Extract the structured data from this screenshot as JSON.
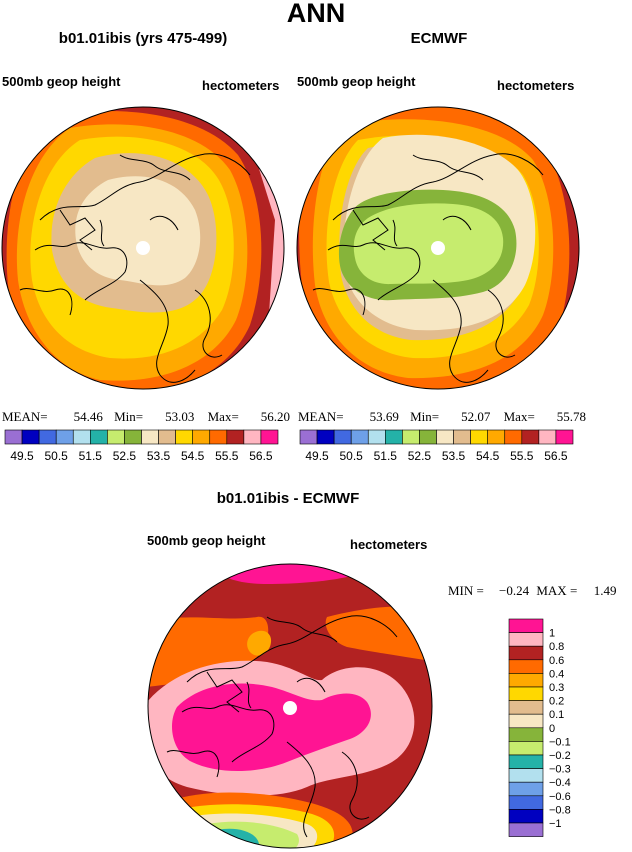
{
  "page": {
    "title": "ANN"
  },
  "colors": {
    "greens": [
      "#f7e7c4",
      "#c6ec6e",
      "#86b43a"
    ],
    "warm": [
      "#e2bc8e",
      "#ffd800",
      "#ffa900",
      "#ff6a00",
      "#b22222",
      "#ffb6c1",
      "#ff1493"
    ],
    "cool": [
      "#9a6fd3",
      "#0000c0",
      "#4169e1",
      "#6ea0e8",
      "#b2e0ee",
      "#24b2a8"
    ],
    "coast": "#000000",
    "pole": "#ffffff"
  },
  "chart_data": [
    {
      "type": "heatmap",
      "projection": "north-polar-stereographic",
      "title": "b01.01ibis (yrs 475-499)",
      "left_label": "500mb geop height",
      "right_label": "hectometers",
      "stats": {
        "mean_label": "MEAN=",
        "mean": "54.46",
        "min_label": "Min=",
        "min": "53.03",
        "max_label": "Max=",
        "max": "56.20"
      },
      "colorbar": {
        "orientation": "horizontal",
        "ticks": [
          "49.5",
          "50.5",
          "51.5",
          "52.5",
          "53.5",
          "54.5",
          "55.5",
          "56.5"
        ],
        "levels": [
          49.5,
          50,
          50.5,
          51,
          51.5,
          52,
          52.5,
          53,
          53.5,
          54,
          54.5,
          55,
          55.5,
          56,
          56.5
        ]
      }
    },
    {
      "type": "heatmap",
      "projection": "north-polar-stereographic",
      "title": "ECMWF",
      "left_label": "500mb geop height",
      "right_label": "hectometers",
      "stats": {
        "mean_label": "MEAN=",
        "mean": "53.69",
        "min_label": "Min=",
        "min": "52.07",
        "max_label": "Max=",
        "max": "55.78"
      },
      "colorbar": {
        "orientation": "horizontal",
        "ticks": [
          "49.5",
          "50.5",
          "51.5",
          "52.5",
          "53.5",
          "54.5",
          "55.5",
          "56.5"
        ],
        "levels": [
          49.5,
          50,
          50.5,
          51,
          51.5,
          52,
          52.5,
          53,
          53.5,
          54,
          54.5,
          55,
          55.5,
          56,
          56.5
        ]
      }
    },
    {
      "type": "heatmap",
      "projection": "north-polar-stereographic",
      "title": "b01.01ibis - ECMWF",
      "left_label": "500mb geop height",
      "right_label": "hectometers",
      "stats": {
        "min_label": "MIN =",
        "min": "−0.24",
        "max_label": "MAX =",
        "max": "1.49"
      },
      "colorbar": {
        "orientation": "vertical",
        "ticks": [
          "1",
          "0.8",
          "0.6",
          "0.4",
          "0.3",
          "0.2",
          "0.1",
          "0",
          "−0.1",
          "−0.2",
          "−0.3",
          "−0.4",
          "−0.6",
          "−0.8",
          "−1"
        ],
        "levels": [
          1,
          0.8,
          0.6,
          0.4,
          0.3,
          0.2,
          0.1,
          0,
          -0.1,
          -0.2,
          -0.3,
          -0.4,
          -0.6,
          -0.8,
          -1
        ]
      }
    }
  ]
}
